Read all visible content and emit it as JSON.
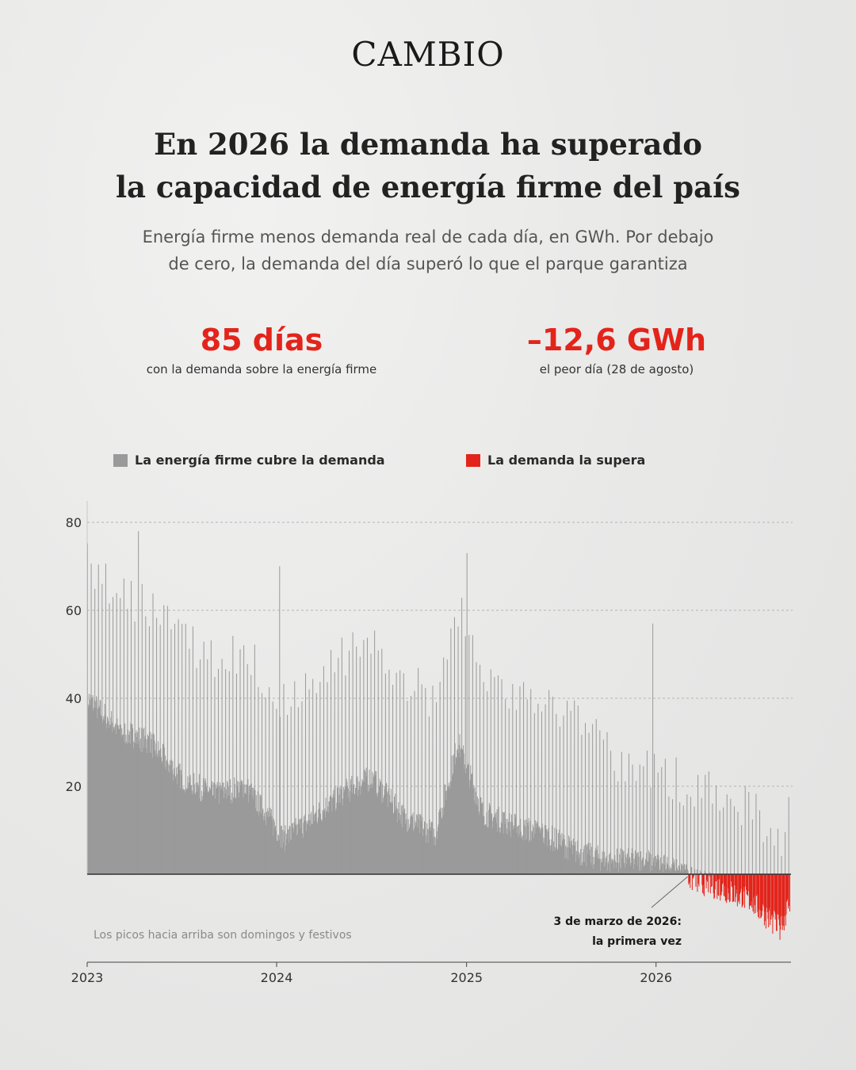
{
  "brand": "CAMBIO",
  "headline": {
    "line1": "En 2026 la demanda ha superado",
    "line2": "la capacidad de energía firme del país"
  },
  "subtitle": {
    "line1": "Energía firme menos demanda real de cada día, en GWh. Por debajo",
    "line2": "de cero, la demanda del día superó lo que el parque garantiza"
  },
  "stats": [
    {
      "value": "85 días",
      "label": "con la demanda sobre la energía firme"
    },
    {
      "value": "–12,6 GWh",
      "label": "el peor día (28 de agosto)"
    }
  ],
  "colors": {
    "positive": "#9a9a9a",
    "negative": "#e3241b",
    "accent": "#e3241b"
  },
  "chart_data": {
    "type": "bar",
    "title": "",
    "xlabel": "",
    "ylabel": "",
    "x_ticks": [
      "2023",
      "2024",
      "2025",
      "2026"
    ],
    "y_ticks": [
      20,
      40,
      60,
      80
    ],
    "ylim": [
      -13,
      85
    ],
    "x_range": [
      "2023-01-01",
      "2026-09-15"
    ],
    "grid": "horizontal dashed",
    "legend_position": "top",
    "series": [
      {
        "name": "La energía firme cubre la demanda",
        "color": "#9a9a9a"
      },
      {
        "name": "La demanda la supera",
        "color": "#e3241b"
      }
    ],
    "trend_knots": [
      {
        "date": "2023-01-01",
        "value": 40
      },
      {
        "date": "2023-03-01",
        "value": 33
      },
      {
        "date": "2023-05-01",
        "value": 30
      },
      {
        "date": "2023-07-01",
        "value": 22
      },
      {
        "date": "2023-09-01",
        "value": 18
      },
      {
        "date": "2023-11-01",
        "value": 20
      },
      {
        "date": "2024-01-15",
        "value": 8
      },
      {
        "date": "2024-03-01",
        "value": 12
      },
      {
        "date": "2024-05-01",
        "value": 18
      },
      {
        "date": "2024-07-01",
        "value": 22
      },
      {
        "date": "2024-09-01",
        "value": 13
      },
      {
        "date": "2024-11-01",
        "value": 9
      },
      {
        "date": "2024-12-15",
        "value": 30
      },
      {
        "date": "2025-02-01",
        "value": 14
      },
      {
        "date": "2025-04-01",
        "value": 11
      },
      {
        "date": "2025-06-01",
        "value": 9
      },
      {
        "date": "2025-08-01",
        "value": 5
      },
      {
        "date": "2025-10-01",
        "value": 3
      },
      {
        "date": "2025-12-15",
        "value": 3
      },
      {
        "date": "2026-02-01",
        "value": 1
      },
      {
        "date": "2026-03-03",
        "value": -1
      },
      {
        "date": "2026-05-01",
        "value": -3
      },
      {
        "date": "2026-07-01",
        "value": -6
      },
      {
        "date": "2026-08-28",
        "value": -12.6
      },
      {
        "date": "2026-09-15",
        "value": -6
      }
    ],
    "sunday_bump": 20,
    "holiday_peaks": [
      {
        "date": "2023-04-09",
        "value": 78
      },
      {
        "date": "2024-01-06",
        "value": 70
      },
      {
        "date": "2025-01-01",
        "value": 73
      },
      {
        "date": "2025-12-25",
        "value": 57
      }
    ],
    "first_negative_date": "2026-03-03",
    "worst_day": {
      "date": "2026-08-28",
      "value": -12.6
    }
  },
  "annotations": {
    "note": "Los picos hacia arriba son domingos y festivos",
    "first_time_line1": "3 de marzo de 2026:",
    "first_time_line2": "la primera vez"
  }
}
